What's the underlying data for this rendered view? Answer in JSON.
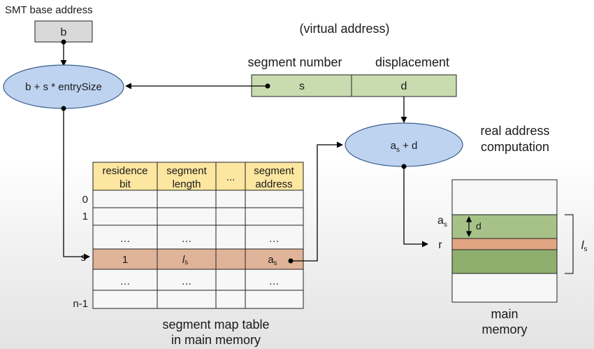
{
  "labels": {
    "smt_base_address": "SMT base address",
    "virtual_address": "(virtual address)",
    "segment_number": "segment number",
    "displacement": "displacement",
    "real_address_computation_line1": "real address",
    "real_address_computation_line2": "computation",
    "table_caption_line1": "segment map table",
    "table_caption_line2": "in main memory",
    "memory_caption_line1": "main",
    "memory_caption_line2": "memory"
  },
  "boxes": {
    "base": "b",
    "segment_field": "s",
    "displacement_field": "d"
  },
  "ellipses": {
    "base_calc": "b + s * entrySize",
    "real_calc_main": "a",
    "real_calc_sub": "s",
    "real_calc_rest": " + d"
  },
  "table": {
    "headers": [
      [
        "residence",
        "bit"
      ],
      [
        "segment",
        "length"
      ],
      [
        "...",
        ""
      ],
      [
        "segment",
        "address"
      ]
    ],
    "row_labels": [
      "0",
      "1",
      "",
      "s",
      "",
      "n-1"
    ],
    "ellipsis_row": [
      "…",
      "…",
      "",
      "…"
    ],
    "highlight_row": {
      "residence": "1",
      "length_main": "l",
      "length_sub": "s",
      "address_main": "a",
      "address_sub": "s"
    }
  },
  "memory": {
    "as_main": "a",
    "as_sub": "s",
    "r_label": "r",
    "d_label": "d",
    "ls_main": "l",
    "ls_sub": "s"
  },
  "colors": {
    "header_fill": "#fde6a0",
    "highlight_fill": "#e0b498",
    "green_fill": "#c9dcb0",
    "dark_green_fill": "#8faf6e",
    "memory_r_fill": "#e2a584",
    "ellipse_fill": "#bdd3ef",
    "base_box_fill": "#d9d9d9"
  }
}
